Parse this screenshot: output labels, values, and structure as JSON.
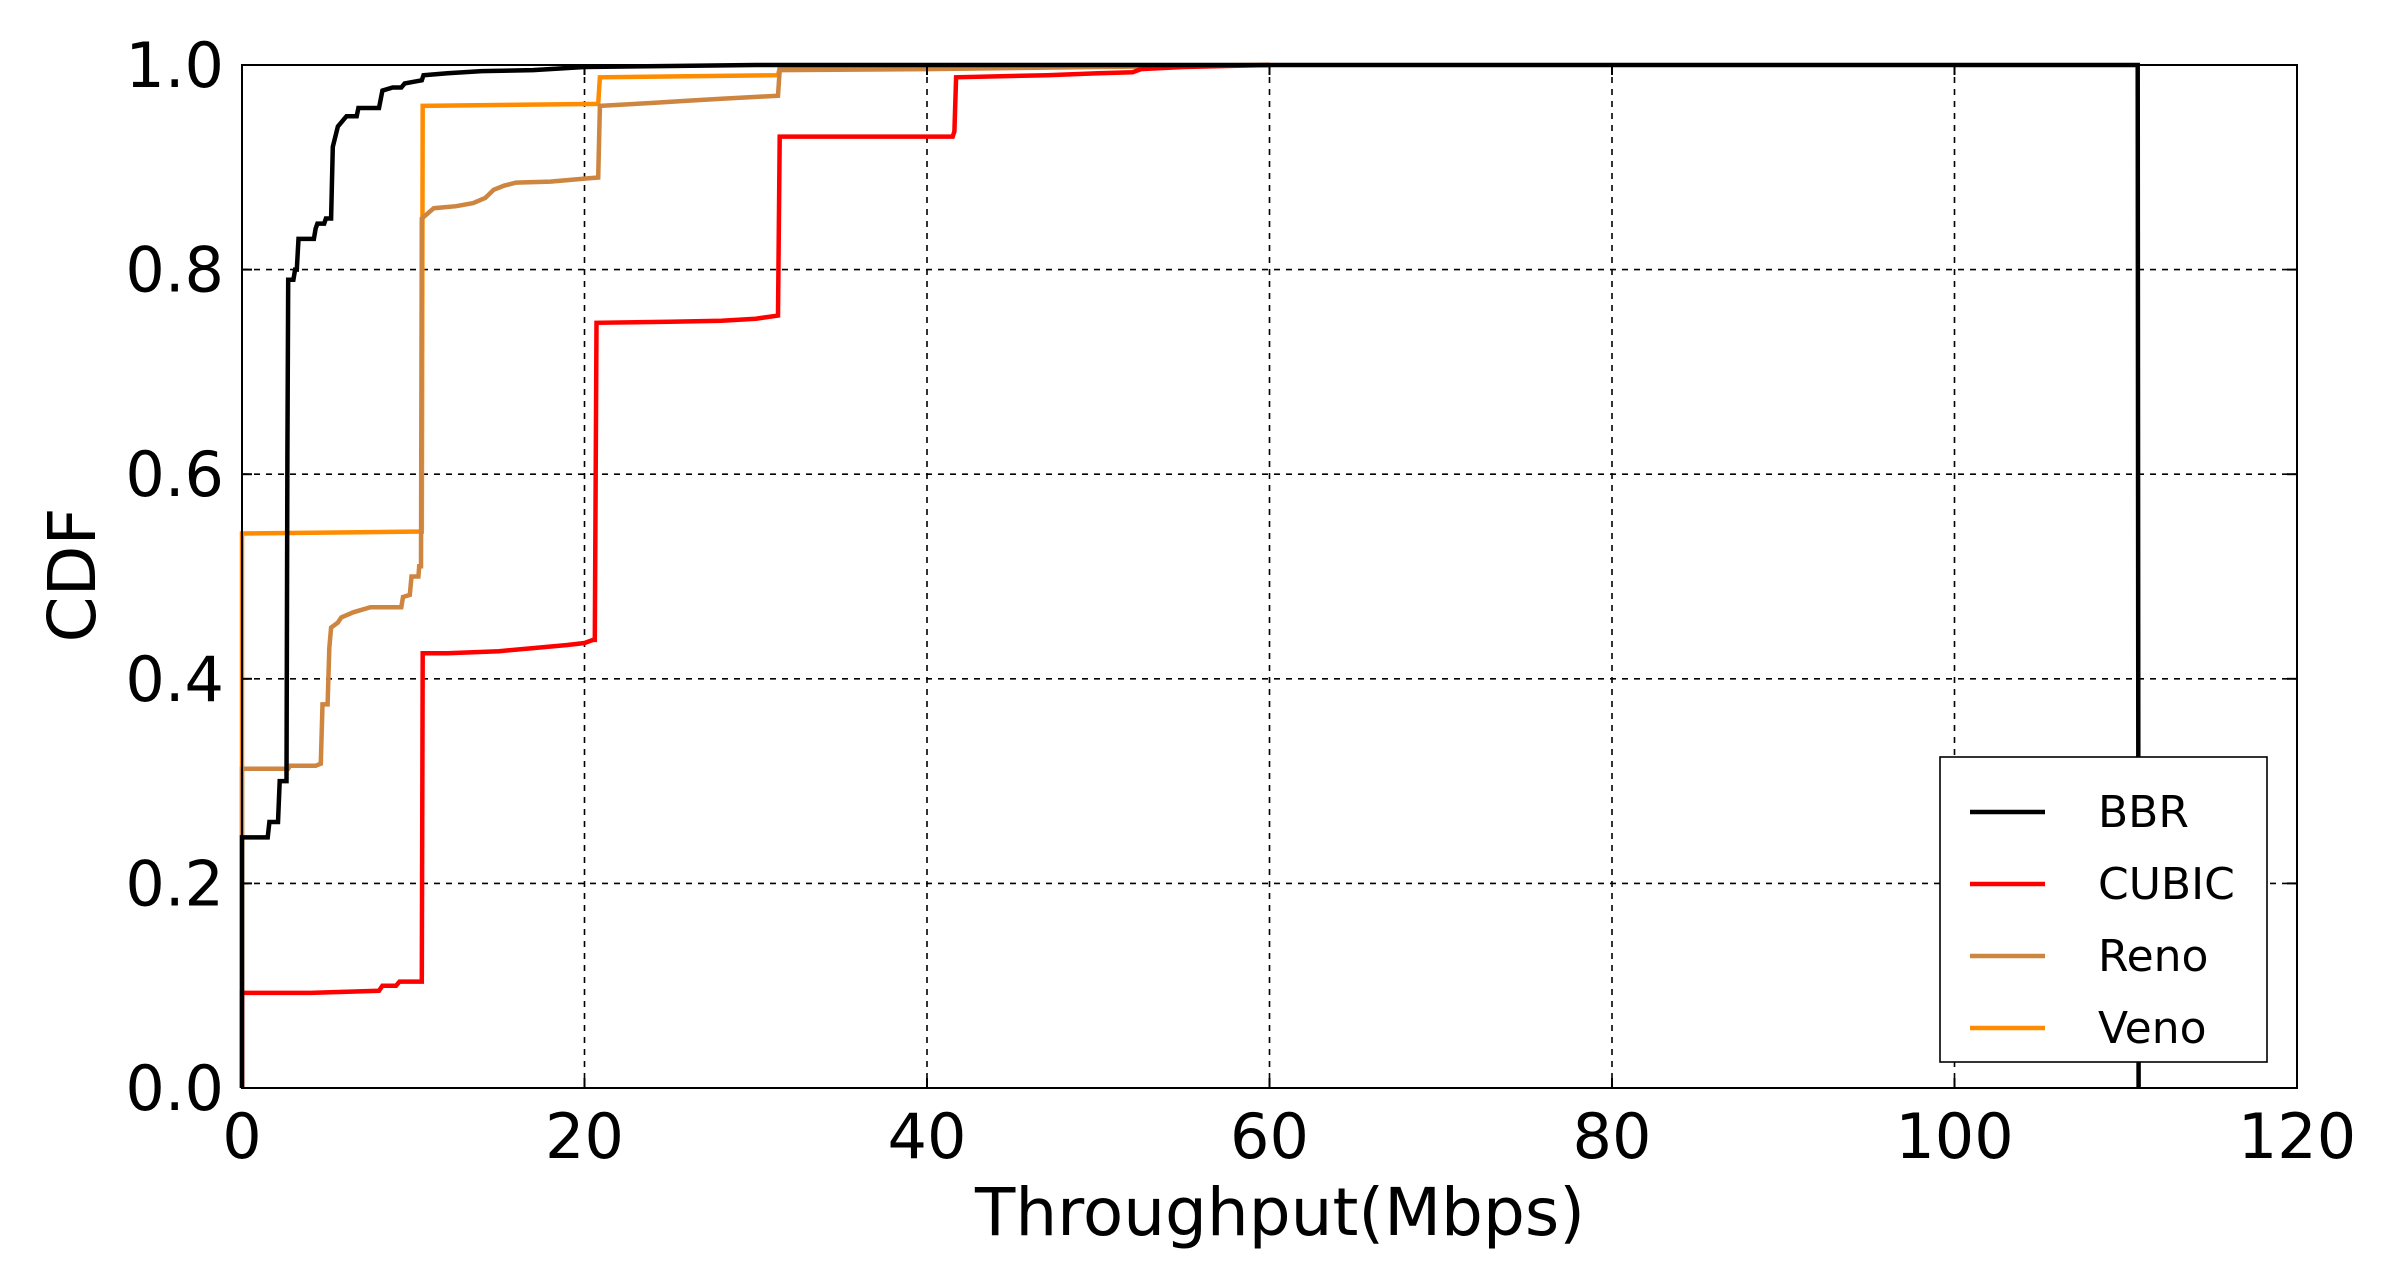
{
  "chart_data": {
    "type": "line",
    "title": "",
    "xlabel": "Throughput(Mbps)",
    "ylabel": "CDF",
    "xlim": [
      0,
      120
    ],
    "ylim": [
      0,
      1.0
    ],
    "xticks": [
      "0",
      "20",
      "40",
      "60",
      "80",
      "100",
      "120"
    ],
    "yticks": [
      "0.0",
      "0.2",
      "0.4",
      "0.6",
      "0.8",
      "1.0"
    ],
    "grid": true,
    "legend_position": "lower-right",
    "series": [
      {
        "name": "BBR",
        "color": "#000000",
        "points": [
          [
            0,
            0
          ],
          [
            0,
            0.245
          ],
          [
            1.5,
            0.245
          ],
          [
            1.6,
            0.26
          ],
          [
            2.1,
            0.26
          ],
          [
            2.2,
            0.3
          ],
          [
            2.6,
            0.3
          ],
          [
            2.65,
            0.62
          ],
          [
            2.7,
            0.79
          ],
          [
            3.0,
            0.79
          ],
          [
            3.1,
            0.8
          ],
          [
            3.2,
            0.8
          ],
          [
            3.3,
            0.83
          ],
          [
            4.2,
            0.83
          ],
          [
            4.3,
            0.84
          ],
          [
            4.4,
            0.845
          ],
          [
            4.8,
            0.845
          ],
          [
            4.9,
            0.85
          ],
          [
            5.2,
            0.85
          ],
          [
            5.3,
            0.92
          ],
          [
            5.6,
            0.94
          ],
          [
            6.1,
            0.95
          ],
          [
            6.7,
            0.95
          ],
          [
            6.8,
            0.958
          ],
          [
            8.0,
            0.958
          ],
          [
            8.2,
            0.975
          ],
          [
            8.8,
            0.978
          ],
          [
            9.3,
            0.978
          ],
          [
            9.5,
            0.982
          ],
          [
            10.5,
            0.985
          ],
          [
            10.6,
            0.99
          ],
          [
            12,
            0.992
          ],
          [
            14,
            0.994
          ],
          [
            17,
            0.995
          ],
          [
            20,
            0.998
          ],
          [
            25,
            0.999
          ],
          [
            30,
            1.0
          ],
          [
            110.7,
            1.0
          ],
          [
            110.75,
            0
          ]
        ]
      },
      {
        "name": "CUBIC",
        "color": "#ff0000",
        "points": [
          [
            0,
            0
          ],
          [
            0,
            0.093
          ],
          [
            4,
            0.093
          ],
          [
            8,
            0.095
          ],
          [
            8.2,
            0.1
          ],
          [
            9,
            0.1
          ],
          [
            9.2,
            0.104
          ],
          [
            10.5,
            0.104
          ],
          [
            10.55,
            0.425
          ],
          [
            12,
            0.425
          ],
          [
            15,
            0.427
          ],
          [
            17,
            0.43
          ],
          [
            19,
            0.433
          ],
          [
            20,
            0.435
          ],
          [
            20.5,
            0.438
          ],
          [
            20.6,
            0.438
          ],
          [
            20.7,
            0.748
          ],
          [
            25,
            0.749
          ],
          [
            28,
            0.75
          ],
          [
            30,
            0.752
          ],
          [
            31.3,
            0.755
          ],
          [
            31.4,
            0.93
          ],
          [
            41.5,
            0.93
          ],
          [
            41.6,
            0.935
          ],
          [
            41.7,
            0.988
          ],
          [
            47,
            0.99
          ],
          [
            50,
            0.992
          ],
          [
            52,
            0.993
          ],
          [
            52.5,
            0.996
          ],
          [
            55,
            0.998
          ],
          [
            60,
            1.0
          ]
        ]
      },
      {
        "name": "Reno",
        "color": "#cd853f",
        "points": [
          [
            0,
            0
          ],
          [
            0,
            0.312
          ],
          [
            2.7,
            0.312
          ],
          [
            2.8,
            0.315
          ],
          [
            4.3,
            0.315
          ],
          [
            4.6,
            0.317
          ],
          [
            4.7,
            0.375
          ],
          [
            5.0,
            0.375
          ],
          [
            5.1,
            0.43
          ],
          [
            5.2,
            0.45
          ],
          [
            5.6,
            0.455
          ],
          [
            5.8,
            0.46
          ],
          [
            6.5,
            0.465
          ],
          [
            7.5,
            0.47
          ],
          [
            9.3,
            0.47
          ],
          [
            9.4,
            0.48
          ],
          [
            9.8,
            0.482
          ],
          [
            9.9,
            0.5
          ],
          [
            10.3,
            0.5
          ],
          [
            10.35,
            0.51
          ],
          [
            10.45,
            0.51
          ],
          [
            10.5,
            0.85
          ],
          [
            11.2,
            0.86
          ],
          [
            12.5,
            0.862
          ],
          [
            13.5,
            0.865
          ],
          [
            14.2,
            0.87
          ],
          [
            14.7,
            0.878
          ],
          [
            15.3,
            0.882
          ],
          [
            16,
            0.885
          ],
          [
            18,
            0.886
          ],
          [
            20,
            0.889
          ],
          [
            20.8,
            0.89
          ],
          [
            20.9,
            0.96
          ],
          [
            24,
            0.963
          ],
          [
            26,
            0.965
          ],
          [
            28,
            0.967
          ],
          [
            31.3,
            0.97
          ],
          [
            31.4,
            0.995
          ],
          [
            40,
            0.996
          ],
          [
            50,
            0.998
          ],
          [
            60,
            1.0
          ]
        ]
      },
      {
        "name": "Veno",
        "color": "#ff8c00",
        "points": [
          [
            0,
            0
          ],
          [
            0,
            0.542
          ],
          [
            10.5,
            0.544
          ],
          [
            10.55,
            0.96
          ],
          [
            20.8,
            0.962
          ],
          [
            20.9,
            0.988
          ],
          [
            31.3,
            0.99
          ],
          [
            31.4,
            0.997
          ],
          [
            40,
            0.998
          ],
          [
            60,
            1.0
          ]
        ]
      }
    ]
  }
}
